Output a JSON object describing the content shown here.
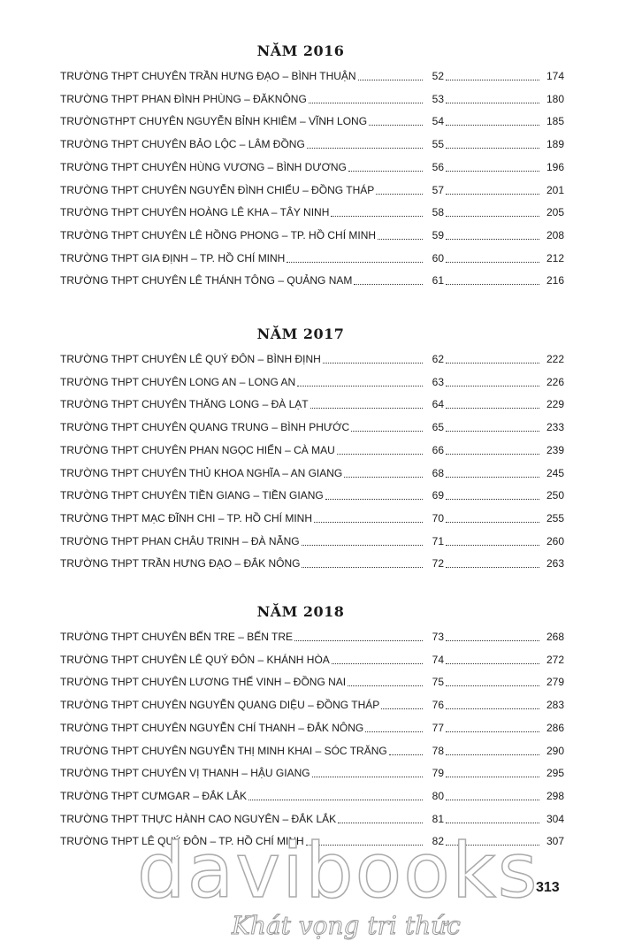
{
  "sections": [
    {
      "title": "NĂM 2016",
      "entries": [
        {
          "name": "TRƯỜNG THPT CHUYÊN TRẦN HƯNG ĐẠO – BÌNH THUẬN",
          "number": 52,
          "page": 174
        },
        {
          "name": "TRƯỜNG THPT PHAN ĐÌNH PHÙNG – ĐĂKNÔNG",
          "number": 53,
          "page": 180
        },
        {
          "name": "TRƯỜNGTHPT CHUYÊN NGUYỄN BỈNH KHIÊM – VĨNH LONG",
          "number": 54,
          "page": 185
        },
        {
          "name": "TRƯỜNG THPT CHUYÊN BẢO LỘC – LÂM ĐỒNG",
          "number": 55,
          "page": 189
        },
        {
          "name": "TRƯỜNG THPT CHUYÊN HÙNG VƯƠNG – BÌNH DƯƠNG",
          "number": 56,
          "page": 196
        },
        {
          "name": "TRƯỜNG THPT CHUYÊN NGUYỄN ĐÌNH CHIỂU – ĐỒNG THÁP",
          "number": 57,
          "page": 201
        },
        {
          "name": "TRƯỜNG THPT CHUYÊN HOÀNG LÊ KHA – TÂY NINH",
          "number": 58,
          "page": 205
        },
        {
          "name": "TRƯỜNG THPT CHUYÊN LÊ HỒNG PHONG – TP. HỒ CHÍ MINH",
          "number": 59,
          "page": 208
        },
        {
          "name": "TRƯỜNG THPT GIA ĐỊNH – TP. HỒ CHÍ MINH",
          "number": 60,
          "page": 212
        },
        {
          "name": "TRƯỜNG THPT CHUYÊN LÊ THÁNH TÔNG – QUẢNG NAM",
          "number": 61,
          "page": 216
        }
      ]
    },
    {
      "title": "NĂM 2017",
      "entries": [
        {
          "name": "TRƯỜNG THPT CHUYÊN LÊ QUÝ ĐÔN – BÌNH ĐỊNH",
          "number": 62,
          "page": 222
        },
        {
          "name": "TRƯỜNG THPT CHUYÊN LONG AN – LONG AN",
          "number": 63,
          "page": 226
        },
        {
          "name": "TRƯỜNG THPT CHUYÊN THĂNG LONG – ĐÀ LẠT",
          "number": 64,
          "page": 229
        },
        {
          "name": "TRƯỜNG THPT CHUYÊN QUANG TRUNG – BÌNH PHƯỚC",
          "number": 65,
          "page": 233
        },
        {
          "name": "TRƯỜNG THPT CHUYÊN PHAN NGỌC HIỂN – CÀ MAU",
          "number": 66,
          "page": 239
        },
        {
          "name": "TRƯỜNG THPT CHUYÊN THỦ KHOA NGHĨA – AN GIANG",
          "number": 68,
          "page": 245
        },
        {
          "name": "TRƯỜNG THPT CHUYÊN TIỀN GIANG – TIỀN GIANG",
          "number": 69,
          "page": 250
        },
        {
          "name": "TRƯỜNG THPT MẠC ĐĨNH CHI – TP. HỒ CHÍ MINH",
          "number": 70,
          "page": 255
        },
        {
          "name": "TRƯỜNG THPT PHAN CHÂU TRINH – ĐÀ NẴNG",
          "number": 71,
          "page": 260
        },
        {
          "name": "TRƯỜNG THPT TRẦN HƯNG ĐẠO – ĐẮK NÔNG",
          "number": 72,
          "page": 263
        }
      ]
    },
    {
      "title": "NĂM 2018",
      "entries": [
        {
          "name": "TRƯỜNG THPT CHUYÊN BẾN TRE – BẾN TRE",
          "number": 73,
          "page": 268
        },
        {
          "name": "TRƯỜNG THPT CHUYÊN LÊ QUÝ ĐÔN – KHÁNH HÒA",
          "number": 74,
          "page": 272
        },
        {
          "name": "TRƯỜNG THPT CHUYÊN LƯƠNG THẾ VINH – ĐỒNG NAI",
          "number": 75,
          "page": 279
        },
        {
          "name": "TRƯỜNG THPT CHUYÊN NGUYỄN QUANG DIỆU – ĐỒNG THÁP",
          "number": 76,
          "page": 283
        },
        {
          "name": "TRƯỜNG THPT CHUYÊN NGUYỄN CHÍ THANH – ĐẮK NÔNG",
          "number": 77,
          "page": 286
        },
        {
          "name": "TRƯỜNG THPT CHUYÊN NGUYỄN THỊ MINH KHAI – SÓC TRĂNG",
          "number": 78,
          "page": 290
        },
        {
          "name": "TRƯỜNG THPT CHUYÊN VỊ THANH – HẬU GIANG",
          "number": 79,
          "page": 295
        },
        {
          "name": "TRƯỜNG THPT CƯMGAR – ĐẮK LẮK",
          "number": 80,
          "page": 298
        },
        {
          "name": "TRƯỜNG THPT THỰC HÀNH CAO NGUYÊN – ĐẮK LẮK",
          "number": 81,
          "page": 304
        },
        {
          "name": "TRƯỜNG THPT LÊ QUÝ ĐÔN – TP. HỒ CHÍ MINH",
          "number": 82,
          "page": 307
        }
      ]
    }
  ],
  "page_number": 313,
  "watermark": {
    "brand": "davibooks",
    "slogan": "Khát vọng tri thức"
  }
}
